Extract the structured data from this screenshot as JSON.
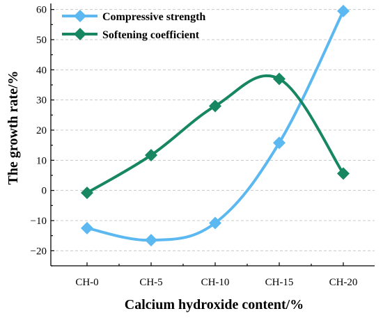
{
  "chart_data": {
    "type": "line",
    "categories": [
      "CH-0",
      "CH-5",
      "CH-10",
      "CH-15",
      "CH-20"
    ],
    "series": [
      {
        "name": "Compressive strength",
        "values": [
          -12.5,
          -16.5,
          -10.8,
          15.8,
          59.5
        ],
        "color": "#5bb8f0",
        "marker": "diamond"
      },
      {
        "name": "Softening coefficient",
        "values": [
          -0.8,
          11.7,
          28.0,
          37.0,
          5.6
        ],
        "color": "#168760",
        "marker": "diamond"
      }
    ],
    "xlabel": "Calcium hydroxide content/%",
    "ylabel": "The growth rate/%",
    "ylim": [
      -25,
      62
    ],
    "yticks": [
      -20,
      -10,
      0,
      10,
      20,
      30,
      40,
      50,
      60
    ],
    "grid": true,
    "legend_position": "top-left"
  }
}
